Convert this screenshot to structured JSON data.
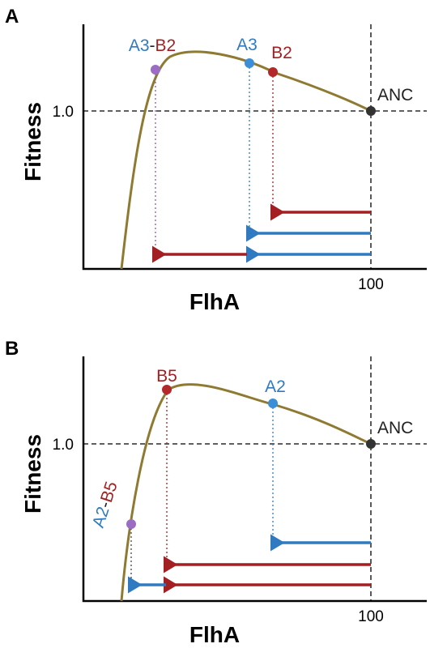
{
  "panels": [
    {
      "letter": "A",
      "y_label": "Fitness",
      "x_label": "FlhA",
      "y_tick": "1.0",
      "x_tick": "100",
      "ancestor": "ANC",
      "point_labels": {
        "double": {
          "first": "A3",
          "dash": "-",
          "second": "B2"
        },
        "blue": "A3",
        "red": "B2"
      }
    },
    {
      "letter": "B",
      "y_label": "Fitness",
      "x_label": "FlhA",
      "y_tick": "1.0",
      "x_tick": "100",
      "ancestor": "ANC",
      "point_labels": {
        "double": {
          "first": "A2",
          "dash": "-",
          "second": "B5"
        },
        "blue": "A2",
        "red": "B5"
      }
    }
  ]
}
